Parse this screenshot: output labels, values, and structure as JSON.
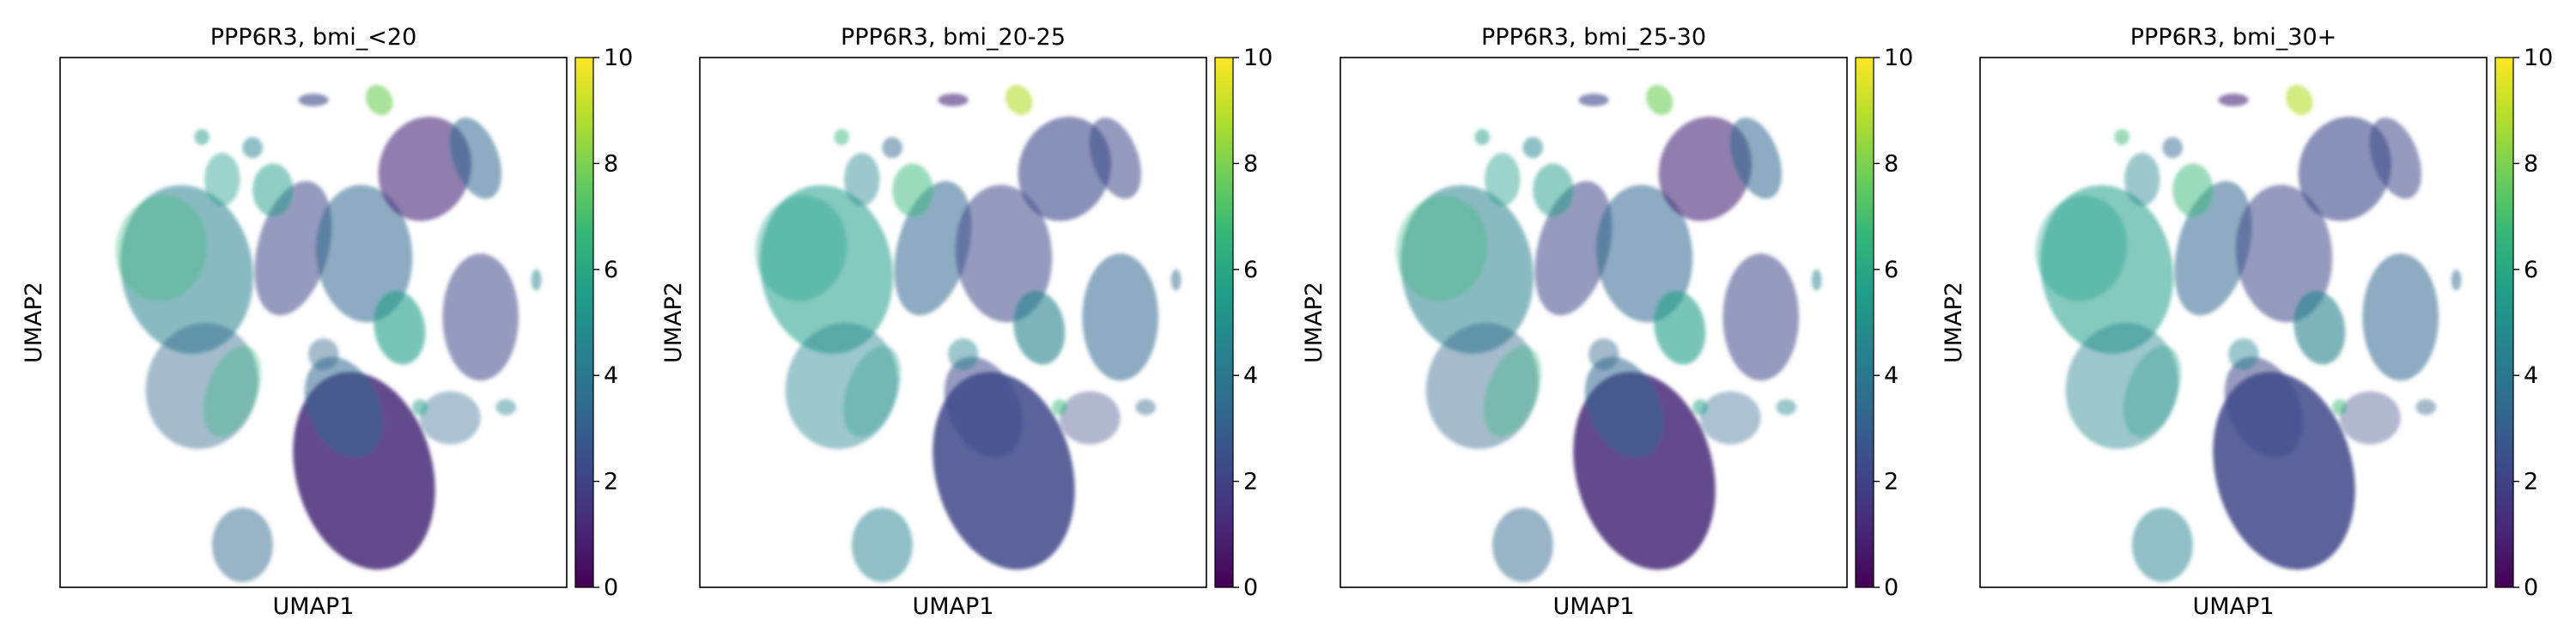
{
  "figure": {
    "panels": [
      {
        "title": "PPP6R3, bmi_<20"
      },
      {
        "title": "PPP6R3, bmi_20-25"
      },
      {
        "title": "PPP6R3, bmi_25-30"
      },
      {
        "title": "PPP6R3, bmi_30+"
      }
    ]
  },
  "chart_data": [
    {
      "type": "scatter",
      "title": "PPP6R3, bmi_<20",
      "xlabel": "UMAP1",
      "ylabel": "UMAP2",
      "colorbar": {
        "range": [
          0,
          10
        ],
        "ticks": [
          "0",
          "2",
          "4",
          "6",
          "8",
          "10"
        ],
        "colormap": "viridis"
      },
      "grid": false,
      "x_ticks": false,
      "y_ticks": false
    },
    {
      "type": "scatter",
      "title": "PPP6R3, bmi_20-25",
      "xlabel": "UMAP1",
      "ylabel": "UMAP2",
      "colorbar": {
        "range": [
          0,
          10
        ],
        "ticks": [
          "0",
          "2",
          "4",
          "6",
          "8",
          "10"
        ],
        "colormap": "viridis"
      },
      "grid": false,
      "x_ticks": false,
      "y_ticks": false
    },
    {
      "type": "scatter",
      "title": "PPP6R3, bmi_25-30",
      "xlabel": "UMAP1",
      "ylabel": "UMAP2",
      "colorbar": {
        "range": [
          0,
          10
        ],
        "ticks": [
          "0",
          "2",
          "4",
          "6",
          "8",
          "10"
        ],
        "colormap": "viridis"
      },
      "grid": false,
      "x_ticks": false,
      "y_ticks": false
    },
    {
      "type": "scatter",
      "title": "PPP6R3, bmi_30+",
      "xlabel": "UMAP1",
      "ylabel": "UMAP2",
      "colorbar": {
        "range": [
          0,
          10
        ],
        "ticks": [
          "0",
          "2",
          "4",
          "6",
          "8",
          "10"
        ],
        "colormap": "viridis"
      },
      "grid": false,
      "x_ticks": false,
      "y_ticks": false
    }
  ],
  "colors": {
    "viridis": [
      "#440154",
      "#482878",
      "#3e4989",
      "#31688e",
      "#26828e",
      "#1f9e89",
      "#35b779",
      "#6ece58",
      "#b5de2b",
      "#fde725"
    ],
    "low_density_purple": "#5b3a7a",
    "axis": "#000000"
  }
}
